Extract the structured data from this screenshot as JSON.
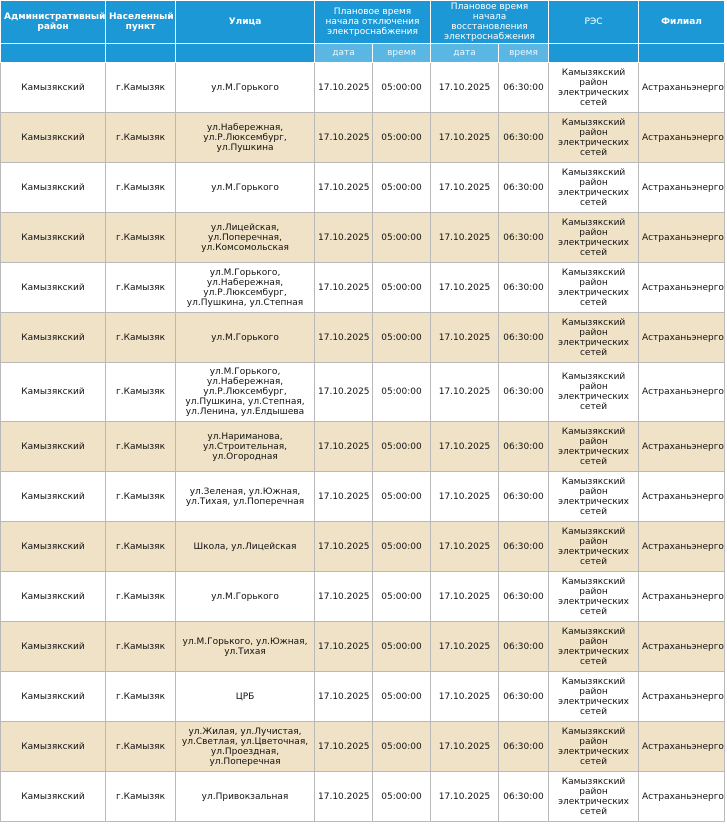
{
  "table": {
    "header": [
      "Административный район",
      "Населенный пункт",
      "Улица",
      "Плановое время начала отключения электроснабжения",
      "Плановое время начала восстановления электроснабжения",
      "РЭС",
      "Филиал"
    ],
    "subheader": [
      "дата",
      "время",
      "дата",
      "время"
    ],
    "rows": [
      [
        "Камызякский",
        "г.Камызяк",
        "ул.М.Горького",
        "17.10.2025",
        "05:00:00",
        "17.10.2025",
        "06:30:00",
        "Камызякский район электрических сетей",
        "Астраханьэнерго"
      ],
      [
        "Камызякский",
        "г.Камызяк",
        "ул.Набережная, ул.Р.Люксембург, ул.Пушкина",
        "17.10.2025",
        "05:00:00",
        "17.10.2025",
        "06:30:00",
        "Камызякский район электрических сетей",
        "Астраханьэнерго"
      ],
      [
        "Камызякский",
        "г.Камызяк",
        "ул.М.Горького",
        "17.10.2025",
        "05:00:00",
        "17.10.2025",
        "06:30:00",
        "Камызякский район электрических сетей",
        "Астраханьэнерго"
      ],
      [
        "Камызякский",
        "г.Камызяк",
        "ул.Лицейская, ул.Поперечная, ул.Комсомольская",
        "17.10.2025",
        "05:00:00",
        "17.10.2025",
        "06:30:00",
        "Камызякский район электрических сетей",
        "Астраханьэнерго"
      ],
      [
        "Камызякский",
        "г.Камызяк",
        "ул.М.Горького, ул.Набережная, ул.Р.Люксембург, ул.Пушкина, ул.Степная",
        "17.10.2025",
        "05:00:00",
        "17.10.2025",
        "06:30:00",
        "Камызякский район электрических сетей",
        "Астраханьэнерго"
      ],
      [
        "Камызякский",
        "г.Камызяк",
        "ул.М.Горького",
        "17.10.2025",
        "05:00:00",
        "17.10.2025",
        "06:30:00",
        "Камызякский район электрических сетей",
        "Астраханьэнерго"
      ],
      [
        "Камызякский",
        "г.Камызяк",
        "ул.М.Горького, ул.Набережная, ул.Р.Люксембург, ул.Пушкина, ул.Степная, ул.Ленина, ул.Елдышева",
        "17.10.2025",
        "05:00:00",
        "17.10.2025",
        "06:30:00",
        "Камызякский район электрических сетей",
        "Астраханьэнерго"
      ],
      [
        "Камызякский",
        "г.Камызяк",
        "ул.Нариманова, ул.Строительная, ул.Огородная",
        "17.10.2025",
        "05:00:00",
        "17.10.2025",
        "06:30:00",
        "Камызякский район электрических сетей",
        "Астраханьэнерго"
      ],
      [
        "Камызякский",
        "г.Камызяк",
        "ул.Зеленая, ул.Южная, ул.Тихая, ул.Поперечная",
        "17.10.2025",
        "05:00:00",
        "17.10.2025",
        "06:30:00",
        "Камызякский район электрических сетей",
        "Астраханьэнерго"
      ],
      [
        "Камызякский",
        "г.Камызяк",
        "Школа, ул.Лицейская",
        "17.10.2025",
        "05:00:00",
        "17.10.2025",
        "06:30:00",
        "Камызякский район электрических сетей",
        "Астраханьэнерго"
      ],
      [
        "Камызякский",
        "г.Камызяк",
        "ул.М.Горького",
        "17.10.2025",
        "05:00:00",
        "17.10.2025",
        "06:30:00",
        "Камызякский район электрических сетей",
        "Астраханьэнерго"
      ],
      [
        "Камызякский",
        "г.Камызяк",
        "ул.М.Горького, ул.Южная, ул.Тихая",
        "17.10.2025",
        "05:00:00",
        "17.10.2025",
        "06:30:00",
        "Камызякский район электрических сетей",
        "Астраханьэнерго"
      ],
      [
        "Камызякский",
        "г.Камызяк",
        "ЦРБ",
        "17.10.2025",
        "05:00:00",
        "17.10.2025",
        "06:30:00",
        "Камызякский район электрических сетей",
        "Астраханьэнерго"
      ],
      [
        "Камызякский",
        "г.Камызяк",
        "ул.Жилая, ул.Лучистая, ул.Светлая, ул.Цветочная, ул.Проездная, ул.Поперечная",
        "17.10.2025",
        "05:00:00",
        "17.10.2025",
        "06:30:00",
        "Камызякский район электрических сетей",
        "Астраханьэнерго"
      ],
      [
        "Камызякский",
        "г.Камызяк",
        "ул.Привокзальная",
        "17.10.2025",
        "05:00:00",
        "17.10.2025",
        "06:30:00",
        "Камызякский район электрических сетей",
        "Астраханьэнерго"
      ]
    ]
  }
}
